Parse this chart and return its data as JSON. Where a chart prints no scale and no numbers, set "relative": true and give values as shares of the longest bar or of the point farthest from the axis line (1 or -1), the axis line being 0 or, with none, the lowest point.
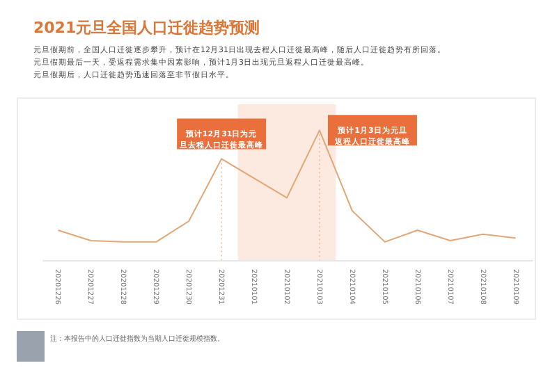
{
  "chart_data": {
    "type": "line",
    "title": "2021元旦全国人口迁徙趋势预测",
    "subtitle": "元旦假期前，全国人口迁徙逐步攀升，预计在12月31日出现去程人口迁徙最高峰，随后人口迁徙趋势有所回落。",
    "categories": [
      "20201226",
      "20201227",
      "20201228",
      "20201229",
      "20201230",
      "20201231",
      "20210101",
      "20210102",
      "20210103",
      "20210104",
      "20210105",
      "20210106",
      "20210107",
      "20210108",
      "20210109"
    ],
    "series": [
      {
        "color": "#e3a676",
        "values": [
          0.23,
          0.15,
          0.14,
          0.14,
          0.3,
          0.78,
          0.63,
          0.48,
          1,
          0.38,
          0.14,
          0.23,
          0.15,
          0.2,
          0.17
        ]
      }
    ],
    "relative": true,
    "bands": [
      {
        "axis": "x",
        "from": "20210101",
        "to": "20210103",
        "color": "#fce9df"
      }
    ],
    "annotations": [
      {
        "text": "预计12月31日为元旦去程人口迁徙最高峰",
        "x": "20201231",
        "y": 0.78
      },
      {
        "text": "预计1月3日为元旦返程人口迁徙最高峰",
        "x": "20210103",
        "y": 1
      },
      "元旦假期最后一天，受返程需求集中因素影响，预计1月3日出现元旦返程人口迁徙最高峰。",
      "元旦假期后，人口迁徙趋势迅速回落至非节假日水平。",
      "注：本报告中的人口迁徙指数为当期人口迁徙规模指数。"
    ],
    "marker": "none",
    "line_style": "solid"
  }
}
